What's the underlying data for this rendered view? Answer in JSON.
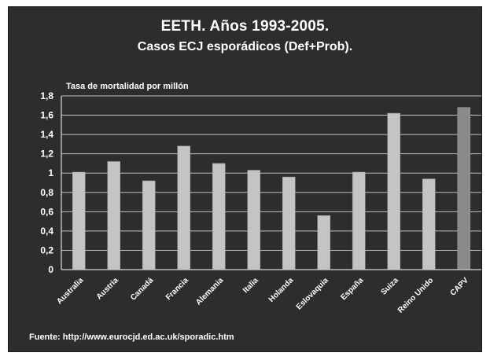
{
  "title": "EETH. Años 1993-2005.",
  "subtitle": "Casos ECJ esporádicos (Def+Prob).",
  "source": "Fuente: http://www.eurocjd.ed.ac.uk/sporadic.htm",
  "colors": {
    "background": "#2f2d2c",
    "bar": "#c4c4c4",
    "highlight_bar": "#8a8a8e",
    "grid": "#bdbdbd",
    "text": "#ffffff"
  },
  "chart_data": {
    "type": "bar",
    "ylabel": "Tasa de mortalidad por millón",
    "xlabel": "",
    "categories": [
      "Australia",
      "Austria",
      "Canadá",
      "Francia",
      "Alemania",
      "Italia",
      "Holanda",
      "Eslovaquia",
      "España",
      "Suiza",
      "Reino Unido",
      "CAPV"
    ],
    "values": [
      1.01,
      1.12,
      0.92,
      1.28,
      1.1,
      1.03,
      0.96,
      0.56,
      1.01,
      1.62,
      0.94,
      1.68
    ],
    "highlight": "CAPV",
    "ylim": [
      0,
      1.8
    ],
    "yticks": [
      "0",
      "0,2",
      "0,4",
      "0,6",
      "0,8",
      "1",
      "1,2",
      "1,4",
      "1,6",
      "1,8"
    ],
    "grid": true,
    "legend": "none"
  }
}
